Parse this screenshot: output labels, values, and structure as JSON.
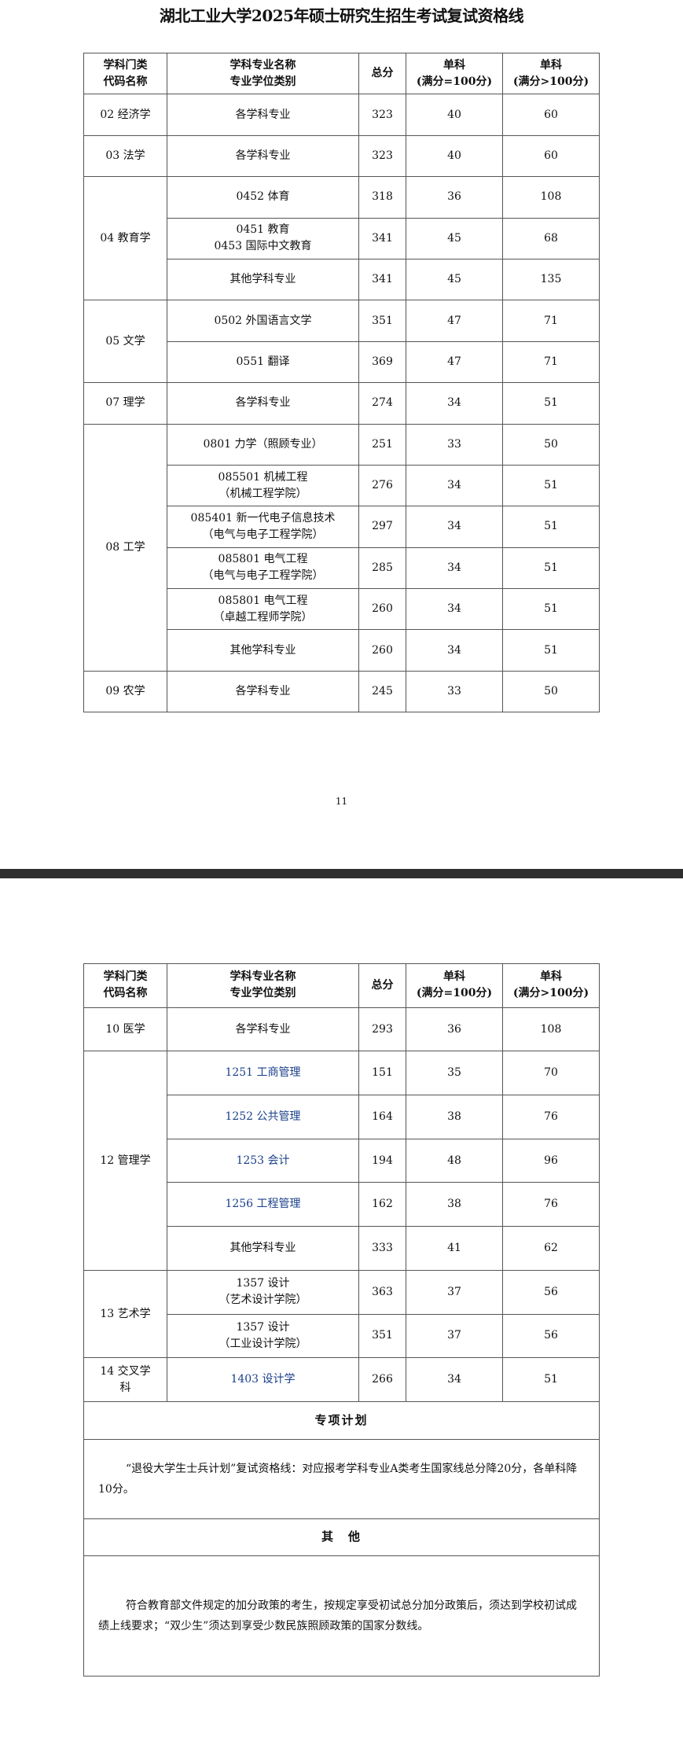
{
  "title": "湖北工业大学2025年硕士研究生招生考试复试资格线",
  "headers": [
    "学科门类\n代码名称",
    "学科专业名称\n专业学位类别",
    "总分",
    "单科\n(满分=100分)",
    "单科\n(满分>100分)"
  ],
  "page1": {
    "groups": [
      {
        "category": "02 经济学",
        "rows": [
          {
            "major": "各学科专业",
            "total": "323",
            "single100": "40",
            "singleOver100": "60"
          }
        ]
      },
      {
        "category": "03 法学",
        "rows": [
          {
            "major": "各学科专业",
            "total": "323",
            "single100": "40",
            "singleOver100": "60"
          }
        ]
      },
      {
        "category": "04 教育学",
        "rows": [
          {
            "major": "0452 体育",
            "total": "318",
            "single100": "36",
            "singleOver100": "108"
          },
          {
            "major": "0451 教育\n0453 国际中文教育",
            "total": "341",
            "single100": "45",
            "singleOver100": "68"
          },
          {
            "major": "其他学科专业",
            "total": "341",
            "single100": "45",
            "singleOver100": "135"
          }
        ]
      },
      {
        "category": "05 文学",
        "rows": [
          {
            "major": "0502  外国语言文学",
            "total": "351",
            "single100": "47",
            "singleOver100": "71"
          },
          {
            "major": "0551 翻译",
            "total": "369",
            "single100": "47",
            "singleOver100": "71"
          }
        ]
      },
      {
        "category": "07 理学",
        "rows": [
          {
            "major": "各学科专业",
            "total": "274",
            "single100": "34",
            "singleOver100": "51"
          }
        ]
      },
      {
        "category": "08 工学",
        "rows": [
          {
            "major": "0801  力学（照顾专业）",
            "total": "251",
            "single100": "33",
            "singleOver100": "50"
          },
          {
            "major": "085501  机械工程\n（机械工程学院）",
            "total": "276",
            "single100": "34",
            "singleOver100": "51"
          },
          {
            "major": "085401 新一代电子信息技术\n（电气与电子工程学院）",
            "total": "297",
            "single100": "34",
            "singleOver100": "51"
          },
          {
            "major": "085801 电气工程\n（电气与电子工程学院）",
            "total": "285",
            "single100": "34",
            "singleOver100": "51"
          },
          {
            "major": "085801 电气工程\n（卓越工程师学院）",
            "total": "260",
            "single100": "34",
            "singleOver100": "51"
          },
          {
            "major": "其他学科专业",
            "total": "260",
            "single100": "34",
            "singleOver100": "51"
          }
        ]
      },
      {
        "category": "09 农学",
        "rows": [
          {
            "major": "各学科专业",
            "total": "245",
            "single100": "33",
            "singleOver100": "50"
          }
        ]
      }
    ],
    "page_number": "11"
  },
  "page2": {
    "groups": [
      {
        "category": "10 医学",
        "rows": [
          {
            "major": "各学科专业",
            "total": "293",
            "single100": "36",
            "singleOver100": "108"
          }
        ]
      },
      {
        "category": "12 管理学",
        "rows": [
          {
            "major": "1251 工商管理",
            "total": "151",
            "single100": "35",
            "singleOver100": "70"
          },
          {
            "major": "1252 公共管理",
            "total": "164",
            "single100": "38",
            "singleOver100": "76"
          },
          {
            "major": "1253 会计",
            "total": "194",
            "single100": "48",
            "singleOver100": "96"
          },
          {
            "major": "1256 工程管理",
            "total": "162",
            "single100": "38",
            "singleOver100": "76"
          },
          {
            "major": "其他学科专业",
            "total": "333",
            "single100": "41",
            "singleOver100": "62"
          }
        ]
      },
      {
        "category": "13 艺术学",
        "rows": [
          {
            "major": "1357 设计\n（艺术设计学院）",
            "total": "363",
            "single100": "37",
            "singleOver100": "56"
          },
          {
            "major": "1357 设计\n（工业设计学院）",
            "total": "351",
            "single100": "37",
            "singleOver100": "56"
          }
        ]
      },
      {
        "category": "14 交叉学\n科",
        "rows": [
          {
            "major": "1403 设计学",
            "total": "266",
            "single100": "34",
            "singleOver100": "51"
          }
        ]
      }
    ],
    "special_plan": {
      "heading": "专项计划",
      "text": "“退役大学生士兵计划”复试资格线：对应报考学科专业A类考生国家线总分降20分，各单科降10分。"
    },
    "other": {
      "heading": "其　他",
      "text": "符合教育部文件规定的加分政策的考生，按规定享受初试总分加分政策后，须达到学校初试成绩上线要求；“双少生”须达到享受少数民族照顾政策的国家分数线。"
    }
  }
}
